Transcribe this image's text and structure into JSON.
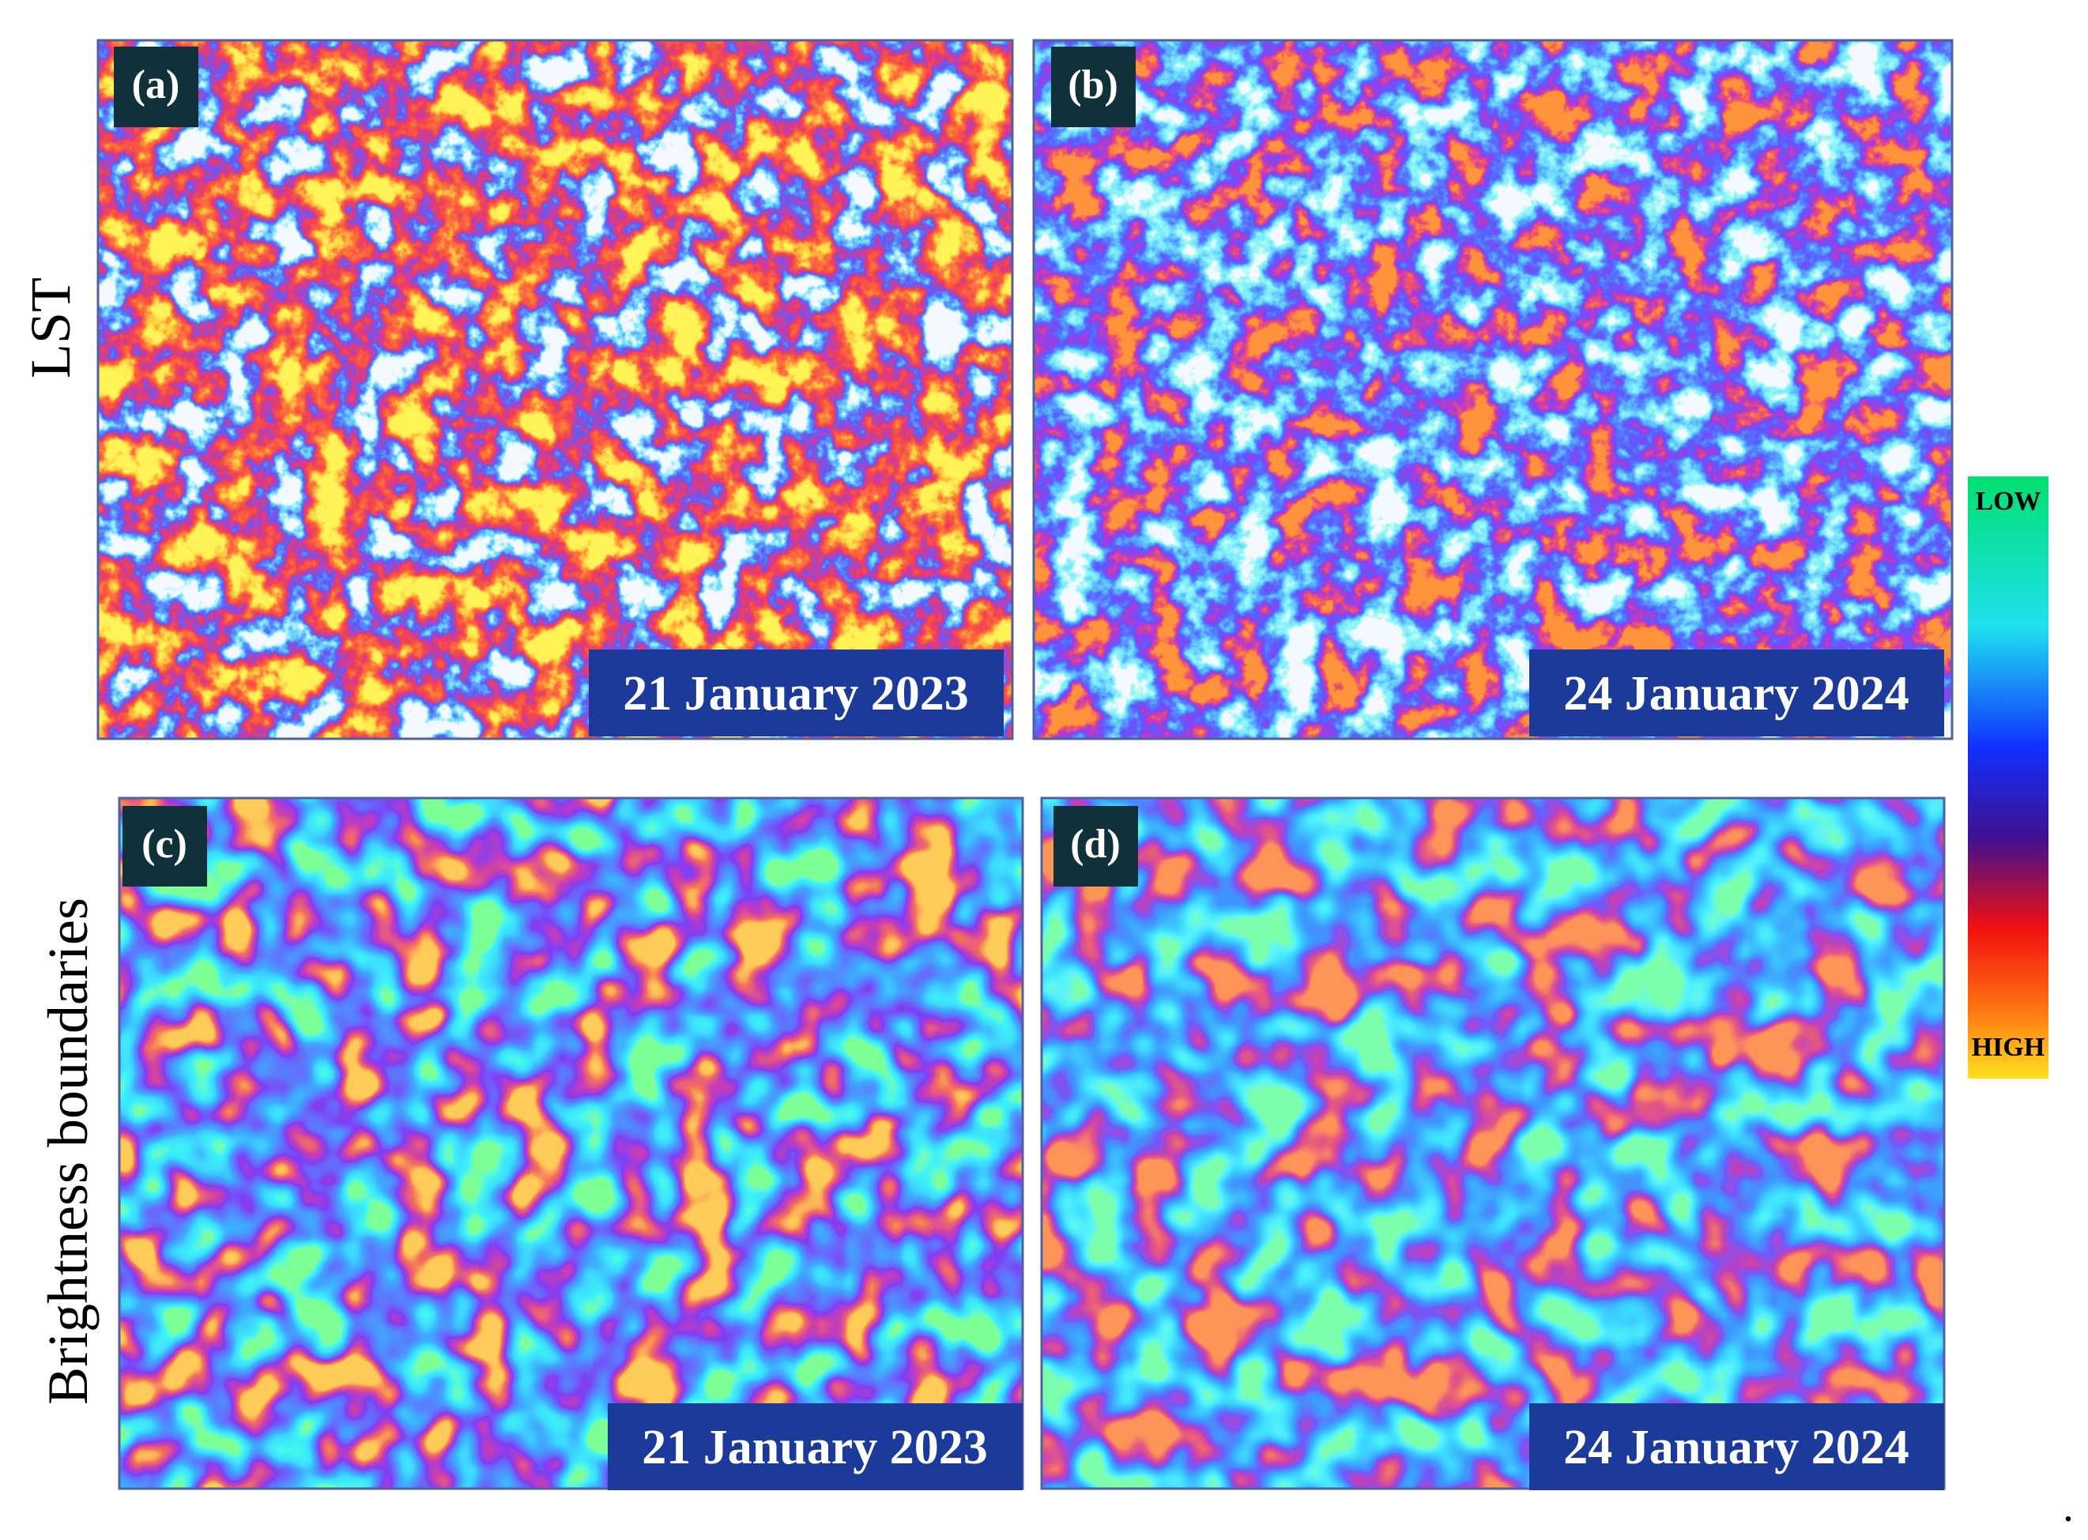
{
  "row_labels": [
    "LST",
    "Brightness boundaries"
  ],
  "panels": [
    {
      "label": "(a)",
      "date": "21 January 2023"
    },
    {
      "label": "(b)",
      "date": "24 January 2024"
    },
    {
      "label": "(c)",
      "date": "21 January 2023"
    },
    {
      "label": "(d)",
      "date": "24 January 2024"
    }
  ],
  "colorbar": {
    "low": "LOW",
    "high": "HIGH"
  },
  "trailing_mark": "."
}
